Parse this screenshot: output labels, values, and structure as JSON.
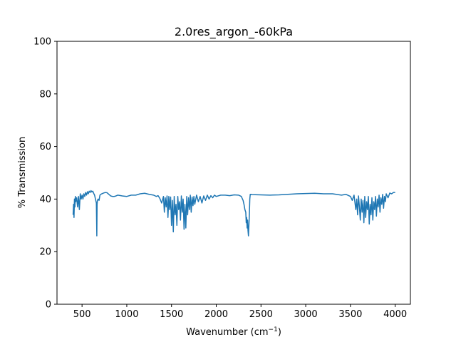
{
  "chart_data": {
    "type": "line",
    "title": "2.0res_argon_-60kPa",
    "xlabel": "Wavenumber (cm",
    "xlabel_sup": "−1",
    "xlabel_end": ")",
    "ylabel": "% Transmission",
    "xlim": [
      220,
      4170
    ],
    "ylim": [
      0,
      100
    ],
    "xticks": [
      500,
      1000,
      1500,
      2000,
      2500,
      3000,
      3500,
      4000
    ],
    "yticks": [
      0,
      20,
      40,
      60,
      80,
      100
    ],
    "grid": false,
    "legend": "none",
    "series": [
      {
        "color": "#1f77b4",
        "x": [
          400,
          405,
          410,
          415,
          420,
          425,
          430,
          440,
          450,
          460,
          470,
          480,
          490,
          500,
          510,
          520,
          530,
          540,
          550,
          560,
          570,
          580,
          590,
          600,
          610,
          620,
          630,
          640,
          650,
          660,
          665,
          668,
          672,
          680,
          690,
          700,
          710,
          720,
          740,
          760,
          780,
          800,
          820,
          840,
          860,
          880,
          900,
          950,
          1000,
          1050,
          1100,
          1150,
          1200,
          1250,
          1300,
          1330,
          1350,
          1370,
          1390,
          1410,
          1420,
          1430,
          1440,
          1450,
          1460,
          1470,
          1480,
          1490,
          1500,
          1510,
          1520,
          1530,
          1540,
          1550,
          1560,
          1570,
          1580,
          1590,
          1600,
          1610,
          1620,
          1630,
          1640,
          1650,
          1660,
          1670,
          1680,
          1690,
          1700,
          1710,
          1720,
          1730,
          1740,
          1750,
          1760,
          1780,
          1800,
          1820,
          1840,
          1860,
          1880,
          1900,
          1920,
          1940,
          1960,
          1980,
          2000,
          2050,
          2100,
          2150,
          2200,
          2250,
          2280,
          2300,
          2310,
          2320,
          2330,
          2335,
          2340,
          2345,
          2350,
          2355,
          2360,
          2365,
          2370,
          2375,
          2380,
          2390,
          2400,
          2500,
          2600,
          2700,
          2800,
          2900,
          3000,
          3100,
          3200,
          3300,
          3400,
          3450,
          3500,
          3520,
          3540,
          3560,
          3570,
          3580,
          3590,
          3600,
          3610,
          3620,
          3630,
          3640,
          3650,
          3660,
          3670,
          3680,
          3690,
          3700,
          3710,
          3720,
          3730,
          3740,
          3750,
          3760,
          3770,
          3780,
          3790,
          3800,
          3810,
          3820,
          3830,
          3840,
          3850,
          3860,
          3870,
          3880,
          3890,
          3900,
          3920,
          3940,
          3960,
          3980,
          4000
        ],
        "y": [
          34,
          38,
          33,
          40,
          37,
          41,
          39,
          40.5,
          37,
          41,
          36,
          42,
          40,
          41.5,
          40,
          42,
          41,
          42.5,
          41.5,
          42.8,
          42,
          43,
          42.5,
          43.2,
          42.7,
          43,
          42.2,
          41.5,
          40,
          38.5,
          26,
          38,
          39.5,
          40,
          39.5,
          41.5,
          41.8,
          42,
          42.3,
          42.5,
          42.4,
          41.8,
          41.2,
          41,
          41,
          41.2,
          41.5,
          41.2,
          41,
          41.5,
          41.5,
          42,
          42.2,
          41.8,
          41.5,
          41,
          41.3,
          40.2,
          38.5,
          41,
          35,
          40.5,
          37,
          41.2,
          33,
          41,
          36,
          40.8,
          30,
          39.5,
          27.5,
          41,
          34,
          38,
          30,
          41,
          36,
          39,
          32,
          41.2,
          35,
          40,
          28.5,
          38,
          29,
          41,
          34,
          40.5,
          36,
          41.5,
          35,
          40.8,
          37.5,
          41,
          38,
          41.5,
          39,
          41,
          38.5,
          41.2,
          39.5,
          41.5,
          40,
          41.3,
          40.5,
          41.5,
          41,
          41.5,
          41.5,
          41.3,
          41.6,
          41.5,
          41,
          39.5,
          38,
          36,
          35,
          31,
          33,
          29,
          32,
          28,
          26,
          30,
          34,
          40,
          41.8,
          41.8,
          41.7,
          41.6,
          41.5,
          41.6,
          41.8,
          42,
          42.1,
          42.2,
          42,
          42,
          41.5,
          41.8,
          41,
          39.5,
          41.5,
          36,
          40,
          34,
          41.2,
          37,
          32,
          40,
          35,
          39.5,
          31,
          41,
          33,
          39,
          36,
          41,
          30.5,
          38,
          34,
          40.5,
          32,
          39,
          36,
          41,
          33.5,
          40,
          37,
          41.5,
          35,
          40.5,
          38,
          41.8,
          36.5,
          41,
          39,
          42,
          40.5,
          42.3,
          42,
          42.5,
          42.5
        ]
      }
    ]
  }
}
